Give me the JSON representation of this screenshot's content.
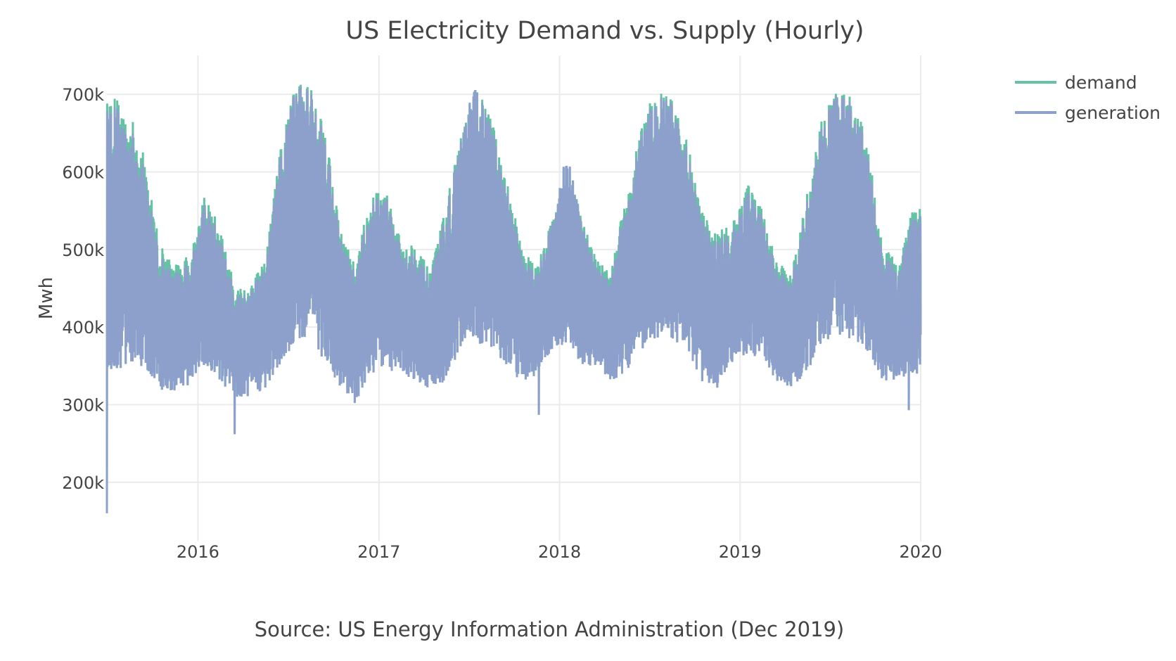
{
  "chart_data": {
    "type": "line",
    "title": "US Electricity Demand vs. Supply (Hourly)",
    "xlabel": "Source: US Energy Information Administration (Dec 2019)",
    "ylabel": "Mwh",
    "xlim": [
      "2015-07-01",
      "2020-01-01"
    ],
    "ylim": [
      160000,
      750000
    ],
    "x_ticks": [
      {
        "value": "2016-01-01",
        "label": "2016"
      },
      {
        "value": "2017-01-01",
        "label": "2017"
      },
      {
        "value": "2018-01-01",
        "label": "2018"
      },
      {
        "value": "2019-01-01",
        "label": "2019"
      },
      {
        "value": "2020-01-01",
        "label": "2020"
      }
    ],
    "y_ticks": [
      {
        "value": 200000,
        "label": "200k"
      },
      {
        "value": 300000,
        "label": "300k"
      },
      {
        "value": 400000,
        "label": "400k"
      },
      {
        "value": 500000,
        "label": "500k"
      },
      {
        "value": 600000,
        "label": "600k"
      },
      {
        "value": 700000,
        "label": "700k"
      }
    ],
    "grid": true,
    "legend_position": "top-right",
    "months": [
      "2015-07",
      "2015-08",
      "2015-09",
      "2015-10",
      "2015-11",
      "2015-12",
      "2016-01",
      "2016-02",
      "2016-03",
      "2016-04",
      "2016-05",
      "2016-06",
      "2016-07",
      "2016-08",
      "2016-09",
      "2016-10",
      "2016-11",
      "2016-12",
      "2017-01",
      "2017-02",
      "2017-03",
      "2017-04",
      "2017-05",
      "2017-06",
      "2017-07",
      "2017-08",
      "2017-09",
      "2017-10",
      "2017-11",
      "2017-12",
      "2018-01",
      "2018-02",
      "2018-03",
      "2018-04",
      "2018-05",
      "2018-06",
      "2018-07",
      "2018-08",
      "2018-09",
      "2018-10",
      "2018-11",
      "2018-12",
      "2019-01",
      "2019-02",
      "2019-03",
      "2019-04",
      "2019-05",
      "2019-06",
      "2019-07",
      "2019-08",
      "2019-09",
      "2019-10",
      "2019-11",
      "2019-12"
    ],
    "series": [
      {
        "name": "demand",
        "color": "#66c2a5",
        "monthly_high": [
          700000,
          680000,
          620000,
          510000,
          480000,
          495000,
          570000,
          530000,
          455000,
          455000,
          485000,
          630000,
          715000,
          715000,
          660000,
          525000,
          480000,
          575000,
          575000,
          510000,
          510000,
          470000,
          555000,
          645000,
          718000,
          670000,
          600000,
          505000,
          480000,
          535000,
          625000,
          540000,
          490000,
          475000,
          570000,
          665000,
          705000,
          695000,
          645000,
          550000,
          525000,
          530000,
          585000,
          555000,
          485000,
          470000,
          570000,
          670000,
          710000,
          695000,
          645000,
          505000,
          485000,
          555000
        ],
        "monthly_low": [
          345000,
          350000,
          345000,
          320000,
          315000,
          325000,
          350000,
          330000,
          310000,
          310000,
          320000,
          350000,
          380000,
          390000,
          350000,
          320000,
          300000,
          340000,
          345000,
          340000,
          330000,
          320000,
          330000,
          370000,
          380000,
          370000,
          350000,
          330000,
          335000,
          370000,
          380000,
          350000,
          350000,
          330000,
          340000,
          370000,
          385000,
          385000,
          370000,
          330000,
          320000,
          350000,
          360000,
          360000,
          330000,
          320000,
          340000,
          380000,
          390000,
          380000,
          370000,
          330000,
          330000,
          340000
        ]
      },
      {
        "name": "generation",
        "color": "#8da0cb",
        "monthly_high": [
          690000,
          665000,
          605000,
          495000,
          470000,
          485000,
          560000,
          520000,
          445000,
          450000,
          475000,
          620000,
          712000,
          710000,
          650000,
          515000,
          470000,
          565000,
          570000,
          500000,
          500000,
          460000,
          545000,
          640000,
          718000,
          660000,
          590000,
          495000,
          470000,
          530000,
          628000,
          535000,
          480000,
          465000,
          560000,
          655000,
          700000,
          690000,
          635000,
          540000,
          515000,
          520000,
          575000,
          545000,
          475000,
          460000,
          560000,
          660000,
          708000,
          688000,
          635000,
          495000,
          475000,
          545000
        ],
        "monthly_low": [
          345000,
          350000,
          345000,
          320000,
          315000,
          325000,
          350000,
          330000,
          310000,
          310000,
          320000,
          350000,
          380000,
          390000,
          350000,
          320000,
          300000,
          340000,
          345000,
          340000,
          330000,
          320000,
          330000,
          370000,
          380000,
          370000,
          350000,
          330000,
          335000,
          370000,
          380000,
          350000,
          350000,
          330000,
          340000,
          370000,
          385000,
          385000,
          370000,
          330000,
          320000,
          350000,
          360000,
          360000,
          330000,
          320000,
          340000,
          380000,
          390000,
          380000,
          370000,
          330000,
          330000,
          340000
        ]
      }
    ],
    "extremes": [
      {
        "date": "2015-07-01",
        "value": 160000
      },
      {
        "date": "2016-03-15",
        "value": 262000
      },
      {
        "date": "2017-11-20",
        "value": 287000
      },
      {
        "date": "2019-12-08",
        "value": 293000
      }
    ]
  }
}
